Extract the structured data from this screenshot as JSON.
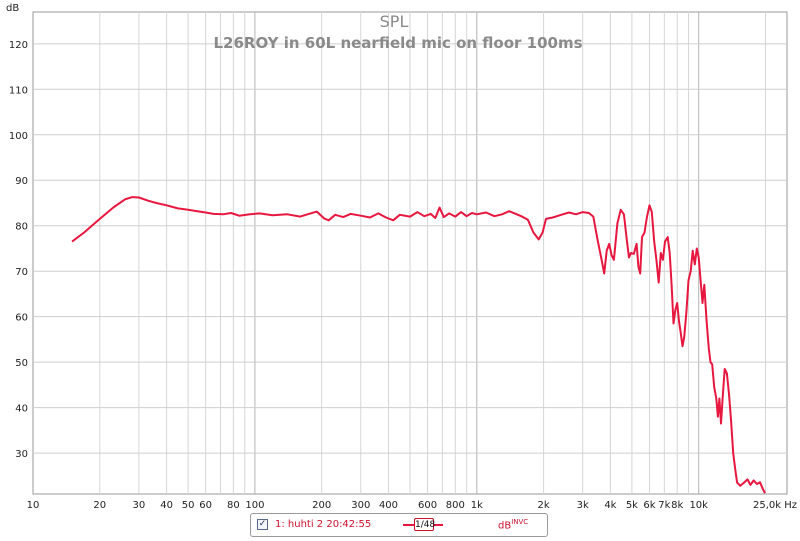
{
  "chart_data": {
    "type": "line",
    "title": "SPL",
    "subtitle": "L26ROY in 60L nearfield mic on floor 100ms",
    "ylabel": "dB",
    "xlabel": "Hz",
    "xscale": "log",
    "xlim": [
      10,
      25000
    ],
    "ylim": [
      21,
      127
    ],
    "grid": true,
    "x_tick_labels": [
      {
        "v": 10,
        "t": "10"
      },
      {
        "v": 20,
        "t": "20"
      },
      {
        "v": 30,
        "t": "30"
      },
      {
        "v": 40,
        "t": "40"
      },
      {
        "v": 50,
        "t": "50"
      },
      {
        "v": 60,
        "t": "60"
      },
      {
        "v": 80,
        "t": "80"
      },
      {
        "v": 100,
        "t": "100"
      },
      {
        "v": 200,
        "t": "200"
      },
      {
        "v": 300,
        "t": "300"
      },
      {
        "v": 400,
        "t": "400"
      },
      {
        "v": 600,
        "t": "600"
      },
      {
        "v": 800,
        "t": "800"
      },
      {
        "v": 1000,
        "t": "1k"
      },
      {
        "v": 2000,
        "t": "2k"
      },
      {
        "v": 3000,
        "t": "3k"
      },
      {
        "v": 4000,
        "t": "4k"
      },
      {
        "v": 5000,
        "t": "5k"
      },
      {
        "v": 6000,
        "t": "6k"
      },
      {
        "v": 7000,
        "t": "7k"
      },
      {
        "v": 8000,
        "t": "8k"
      },
      {
        "v": 10000,
        "t": "10k"
      },
      {
        "v": 25000,
        "t": "25,0k Hz"
      }
    ],
    "y_ticks": [
      30,
      40,
      50,
      60,
      70,
      80,
      90,
      100,
      110,
      120
    ],
    "series": [
      {
        "name": "1: huhti 2 20:42:55",
        "color": "#e8173f",
        "points": [
          [
            15,
            76.5
          ],
          [
            17,
            78.5
          ],
          [
            20,
            81.5
          ],
          [
            23,
            84.0
          ],
          [
            26,
            85.8
          ],
          [
            28,
            86.3
          ],
          [
            30,
            86.2
          ],
          [
            33,
            85.5
          ],
          [
            36,
            85.0
          ],
          [
            40,
            84.5
          ],
          [
            45,
            83.8
          ],
          [
            50,
            83.5
          ],
          [
            55,
            83.2
          ],
          [
            60,
            82.9
          ],
          [
            65,
            82.6
          ],
          [
            72,
            82.5
          ],
          [
            78,
            82.8
          ],
          [
            85,
            82.2
          ],
          [
            95,
            82.5
          ],
          [
            105,
            82.7
          ],
          [
            120,
            82.3
          ],
          [
            140,
            82.5
          ],
          [
            160,
            82.0
          ],
          [
            175,
            82.6
          ],
          [
            190,
            83.1
          ],
          [
            205,
            81.6
          ],
          [
            215,
            81.2
          ],
          [
            230,
            82.4
          ],
          [
            250,
            81.9
          ],
          [
            270,
            82.6
          ],
          [
            300,
            82.2
          ],
          [
            330,
            81.8
          ],
          [
            360,
            82.7
          ],
          [
            390,
            81.8
          ],
          [
            420,
            81.2
          ],
          [
            450,
            82.4
          ],
          [
            500,
            82.0
          ],
          [
            540,
            83.0
          ],
          [
            580,
            82.1
          ],
          [
            620,
            82.6
          ],
          [
            650,
            81.7
          ],
          [
            680,
            84.0
          ],
          [
            710,
            81.9
          ],
          [
            750,
            82.7
          ],
          [
            800,
            82.0
          ],
          [
            850,
            83.0
          ],
          [
            900,
            82.1
          ],
          [
            950,
            82.8
          ],
          [
            1000,
            82.5
          ],
          [
            1100,
            82.9
          ],
          [
            1200,
            82.1
          ],
          [
            1300,
            82.5
          ],
          [
            1400,
            83.2
          ],
          [
            1500,
            82.6
          ],
          [
            1600,
            82.0
          ],
          [
            1700,
            81.3
          ],
          [
            1800,
            78.5
          ],
          [
            1900,
            77.0
          ],
          [
            1980,
            78.5
          ],
          [
            2050,
            81.5
          ],
          [
            2200,
            81.8
          ],
          [
            2400,
            82.4
          ],
          [
            2600,
            82.9
          ],
          [
            2800,
            82.5
          ],
          [
            3000,
            83.0
          ],
          [
            3200,
            82.8
          ],
          [
            3350,
            82.0
          ],
          [
            3500,
            77.0
          ],
          [
            3650,
            72.5
          ],
          [
            3750,
            69.5
          ],
          [
            3850,
            74.5
          ],
          [
            3950,
            76.0
          ],
          [
            4050,
            73.5
          ],
          [
            4150,
            72.5
          ],
          [
            4300,
            80.5
          ],
          [
            4450,
            83.5
          ],
          [
            4600,
            82.5
          ],
          [
            4750,
            76.5
          ],
          [
            4850,
            73.0
          ],
          [
            4950,
            74.0
          ],
          [
            5100,
            73.8
          ],
          [
            5250,
            76.0
          ],
          [
            5350,
            71.0
          ],
          [
            5450,
            69.5
          ],
          [
            5550,
            77.5
          ],
          [
            5700,
            78.5
          ],
          [
            5850,
            82.0
          ],
          [
            6000,
            84.5
          ],
          [
            6150,
            83.0
          ],
          [
            6300,
            76.5
          ],
          [
            6450,
            72.5
          ],
          [
            6600,
            67.5
          ],
          [
            6750,
            74.0
          ],
          [
            6900,
            72.5
          ],
          [
            7050,
            76.5
          ],
          [
            7250,
            77.5
          ],
          [
            7400,
            74.0
          ],
          [
            7550,
            67.0
          ],
          [
            7700,
            58.5
          ],
          [
            7850,
            61.5
          ],
          [
            8000,
            63.0
          ],
          [
            8150,
            59.0
          ],
          [
            8300,
            56.5
          ],
          [
            8450,
            53.5
          ],
          [
            8600,
            55.5
          ],
          [
            8800,
            61.0
          ],
          [
            9000,
            68.0
          ],
          [
            9200,
            70.0
          ],
          [
            9400,
            74.5
          ],
          [
            9600,
            71.5
          ],
          [
            9800,
            75.0
          ],
          [
            10000,
            73.0
          ],
          [
            10200,
            68.0
          ],
          [
            10400,
            63.0
          ],
          [
            10600,
            67.0
          ],
          [
            10850,
            59.0
          ],
          [
            11100,
            53.0
          ],
          [
            11300,
            50.0
          ],
          [
            11500,
            49.5
          ],
          [
            11750,
            44.5
          ],
          [
            12000,
            42.0
          ],
          [
            12200,
            38.0
          ],
          [
            12400,
            42.0
          ],
          [
            12600,
            36.5
          ],
          [
            12850,
            43.0
          ],
          [
            13100,
            48.5
          ],
          [
            13400,
            47.5
          ],
          [
            13700,
            43.0
          ],
          [
            14000,
            37.0
          ],
          [
            14300,
            30.0
          ],
          [
            14600,
            26.5
          ],
          [
            14900,
            23.5
          ],
          [
            15400,
            22.8
          ],
          [
            16000,
            23.5
          ],
          [
            16600,
            24.2
          ],
          [
            17100,
            23.0
          ],
          [
            17700,
            24.0
          ],
          [
            18300,
            23.2
          ],
          [
            18900,
            23.6
          ],
          [
            19400,
            22.2
          ],
          [
            19900,
            21.2
          ]
        ]
      }
    ]
  },
  "legend": {
    "checked": true,
    "check_glyph": "✓",
    "entry_label": "1: huhti 2 20:42:55",
    "smoothing_num": "1",
    "smoothing_den": "48",
    "unit": "dB",
    "unit_suffix": "INVC",
    "color": "#e8173f"
  }
}
